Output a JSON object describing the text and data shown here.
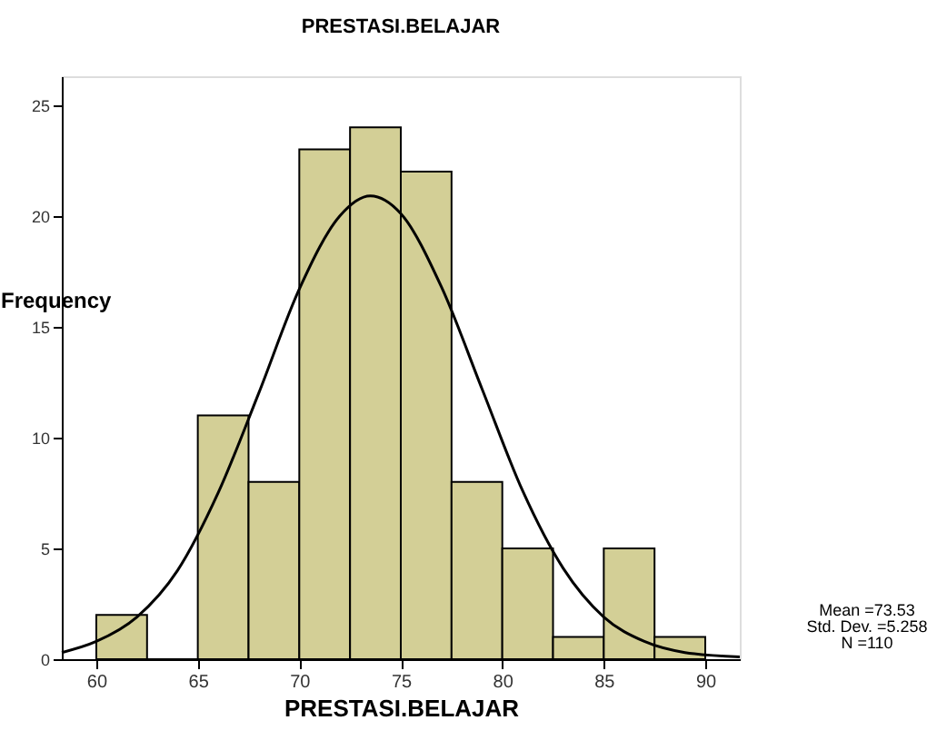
{
  "chart_data": {
    "type": "histogram",
    "title": "PRESTASI.BELAJAR",
    "xlabel": "PRESTASI.BELAJAR",
    "ylabel": "Frequency",
    "bins": [
      60,
      62.5,
      65,
      67.5,
      70,
      72.5,
      75,
      77.5,
      80,
      82.5,
      85,
      87.5,
      90
    ],
    "values": [
      2,
      0,
      11,
      8,
      23,
      24,
      22,
      8,
      5,
      1,
      5,
      1
    ],
    "color": "#d3cf96",
    "series": [
      {
        "type": "line",
        "color": "#000000",
        "x": [
          58.3,
          60,
          62,
          64,
          66,
          68,
          70,
          72,
          73.5,
          75,
          77,
          79,
          81,
          83,
          85,
          87,
          89,
          91.7
        ],
        "values": [
          0.3,
          0.8,
          1.9,
          4.0,
          7.5,
          12.0,
          16.7,
          20.0,
          20.9,
          20.1,
          16.8,
          12.2,
          7.6,
          4.1,
          1.9,
          0.8,
          0.3,
          0.1
        ]
      }
    ],
    "xlim": [
      58.3,
      91.7
    ],
    "xticks": [
      60,
      65,
      70,
      75,
      80,
      85,
      90
    ],
    "ylim": [
      0,
      26.3
    ],
    "yticks": [
      0,
      5,
      10,
      15,
      20,
      25
    ],
    "grid": false,
    "annotations": [
      "Mean =73.53",
      "Std. Dev. =5.258",
      "N =110"
    ]
  }
}
